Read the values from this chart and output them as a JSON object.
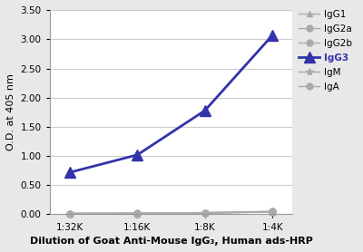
{
  "x_labels": [
    "1:32K",
    "1:16K",
    "1:8K",
    "1:4K"
  ],
  "x_values": [
    0,
    1,
    2,
    3
  ],
  "series": {
    "IgG1": {
      "values": [
        0.015,
        0.015,
        0.02,
        0.04
      ],
      "color": "#aaaaaa",
      "marker": "^",
      "linewidth": 1.0,
      "markersize": 5,
      "bold": false,
      "zorder": 2
    },
    "IgG2a": {
      "values": [
        0.015,
        0.015,
        0.02,
        0.04
      ],
      "color": "#aaaaaa",
      "marker": "o",
      "linewidth": 1.0,
      "markersize": 5,
      "bold": false,
      "zorder": 2
    },
    "IgG2b": {
      "values": [
        0.015,
        0.02,
        0.03,
        0.05
      ],
      "color": "#aaaaaa",
      "marker": "o",
      "linewidth": 1.0,
      "markersize": 5,
      "bold": false,
      "zorder": 2
    },
    "IgG3": {
      "values": [
        0.72,
        1.02,
        1.78,
        3.07
      ],
      "color": "#3333AA",
      "marker": "^",
      "linewidth": 2.0,
      "markersize": 8,
      "bold": true,
      "zorder": 5
    },
    "IgM": {
      "values": [
        0.015,
        0.02,
        0.03,
        0.05
      ],
      "color": "#aaaaaa",
      "marker": "*",
      "linewidth": 1.0,
      "markersize": 6,
      "bold": false,
      "zorder": 2
    },
    "IgA": {
      "values": [
        0.015,
        0.015,
        0.02,
        0.05
      ],
      "color": "#aaaaaa",
      "marker": "o",
      "linewidth": 1.0,
      "markersize": 5,
      "bold": false,
      "zorder": 2
    }
  },
  "title": "",
  "ylabel": "O.D. at 405 nm",
  "xlabel": "Dilution of Goat Anti-Mouse IgG₃, Human ads-HRP",
  "ylim": [
    0.0,
    3.5
  ],
  "yticks": [
    0.0,
    0.5,
    1.0,
    1.5,
    2.0,
    2.5,
    3.0,
    3.5
  ],
  "background_color": "#e8e8e8",
  "plot_background": "#ffffff",
  "grid_color": "#cccccc",
  "legend_order": [
    "IgG1",
    "IgG2a",
    "IgG2b",
    "IgG3",
    "IgM",
    "IgA"
  ]
}
